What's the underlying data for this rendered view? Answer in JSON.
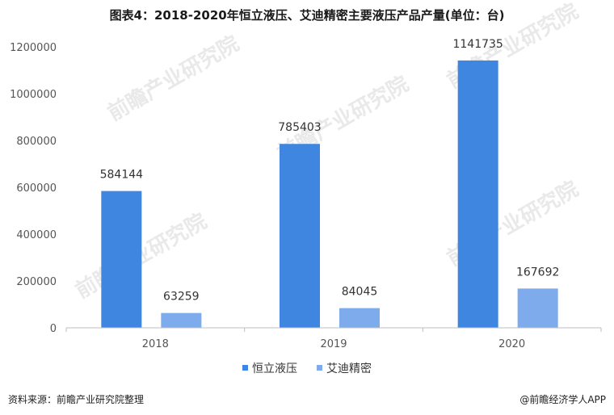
{
  "title": "图表4：2018-2020年恒立液压、艾迪精密主要液压产品产量(单位：台)",
  "source": "资料来源：前瞻产业研究院整理",
  "brand": "@前瞻经济学人APP",
  "watermark": "前瞻产业研究院",
  "colors": {
    "series1": "#3f86e0",
    "series2": "#7dabeb",
    "axis": "#bfbfbf"
  },
  "chart_data": {
    "type": "bar",
    "categories": [
      "2018",
      "2019",
      "2020"
    ],
    "series": [
      {
        "name": "恒立液压",
        "values": [
          584144,
          785403,
          1141735
        ]
      },
      {
        "name": "艾迪精密",
        "values": [
          63259,
          84045,
          167692
        ]
      }
    ],
    "ylim": [
      0,
      1200000
    ],
    "yticks": [
      "0",
      "200000",
      "400000",
      "600000",
      "800000",
      "1000000",
      "1200000"
    ],
    "grid": false,
    "legend": "bottom"
  }
}
